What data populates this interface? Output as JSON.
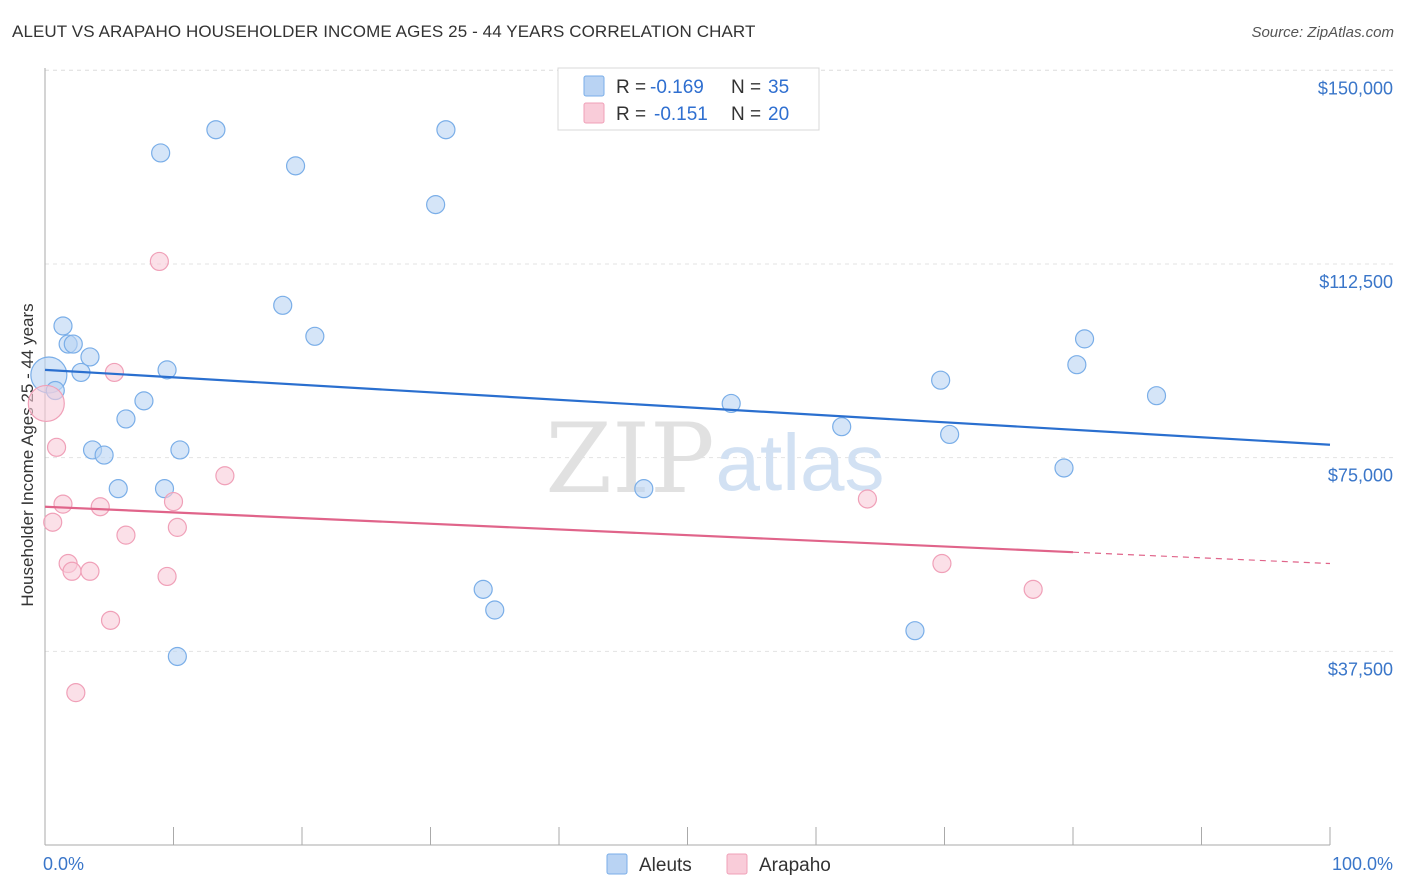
{
  "chart_data": {
    "type": "scatter",
    "title": "ALEUT VS ARAPAHO HOUSEHOLDER INCOME AGES 25 - 44 YEARS CORRELATION CHART",
    "source": "Source: ZipAtlas.com",
    "xlabel": "",
    "ylabel": "Householder Income Ages 25 - 44 years",
    "xlim": [
      0,
      100
    ],
    "ylim": [
      0,
      152000
    ],
    "x_tick_labels": {
      "min": "0.0%",
      "max": "100.0%"
    },
    "y_ticks": [
      {
        "value": 150000,
        "label": "$150,000"
      },
      {
        "value": 112500,
        "label": "$112,500"
      },
      {
        "value": 75000,
        "label": "$75,000"
      },
      {
        "value": 37500,
        "label": "$37,500"
      }
    ],
    "watermark": {
      "zip": "ZIP",
      "atlas": "atlas"
    },
    "series": [
      {
        "name": "Aleuts",
        "color": "#7aaee8",
        "fill": "#b9d3f3",
        "line_color": "#2a6fcf",
        "legend": {
          "r_label": "R =",
          "r_value": "-0.169",
          "n_label": "N =",
          "n_value": "35"
        },
        "trend": {
          "x": [
            0,
            100
          ],
          "y": [
            92000,
            77500
          ],
          "dashed_from": null
        },
        "points": [
          [
            0.3,
            91000
          ],
          [
            0.8,
            88000
          ],
          [
            1.4,
            100500
          ],
          [
            1.8,
            97000
          ],
          [
            2.2,
            97000
          ],
          [
            2.8,
            91500
          ],
          [
            3.5,
            94500
          ],
          [
            3.7,
            76500
          ],
          [
            4.6,
            75500
          ],
          [
            5.7,
            69000
          ],
          [
            6.3,
            82500
          ],
          [
            7.7,
            86000
          ],
          [
            9.0,
            134000
          ],
          [
            9.3,
            69000
          ],
          [
            9.5,
            92000
          ],
          [
            10.5,
            76500
          ],
          [
            10.3,
            36500
          ],
          [
            13.3,
            138500
          ],
          [
            18.5,
            104500
          ],
          [
            19.5,
            131500
          ],
          [
            21.0,
            98500
          ],
          [
            30.4,
            124000
          ],
          [
            31.2,
            138500
          ],
          [
            34.1,
            49500
          ],
          [
            35.0,
            45500
          ],
          [
            46.6,
            69000
          ],
          [
            53.4,
            85500
          ],
          [
            62.0,
            81000
          ],
          [
            67.7,
            41500
          ],
          [
            69.7,
            90000
          ],
          [
            70.4,
            79500
          ],
          [
            79.3,
            73000
          ],
          [
            80.3,
            93000
          ],
          [
            80.9,
            98000
          ],
          [
            86.5,
            87000
          ]
        ]
      },
      {
        "name": "Arapaho",
        "color": "#f0a0b8",
        "fill": "#f9ccd9",
        "line_color": "#e0648a",
        "legend": {
          "r_label": "R =",
          "r_value": "-0.151",
          "n_label": "N =",
          "n_value": "20"
        },
        "trend": {
          "x": [
            0,
            100
          ],
          "y": [
            65500,
            54500
          ],
          "dashed_from": 80
        },
        "points": [
          [
            0.1,
            85500
          ],
          [
            0.6,
            62500
          ],
          [
            0.9,
            77000
          ],
          [
            1.4,
            66000
          ],
          [
            1.8,
            54500
          ],
          [
            2.1,
            53000
          ],
          [
            2.4,
            29500
          ],
          [
            3.5,
            53000
          ],
          [
            4.3,
            65500
          ],
          [
            5.1,
            43500
          ],
          [
            5.4,
            91500
          ],
          [
            6.3,
            60000
          ],
          [
            8.9,
            113000
          ],
          [
            9.5,
            52000
          ],
          [
            10.0,
            66500
          ],
          [
            10.3,
            61500
          ],
          [
            14.0,
            71500
          ],
          [
            64.0,
            67000
          ],
          [
            69.8,
            54500
          ],
          [
            76.9,
            49500
          ]
        ]
      }
    ]
  }
}
